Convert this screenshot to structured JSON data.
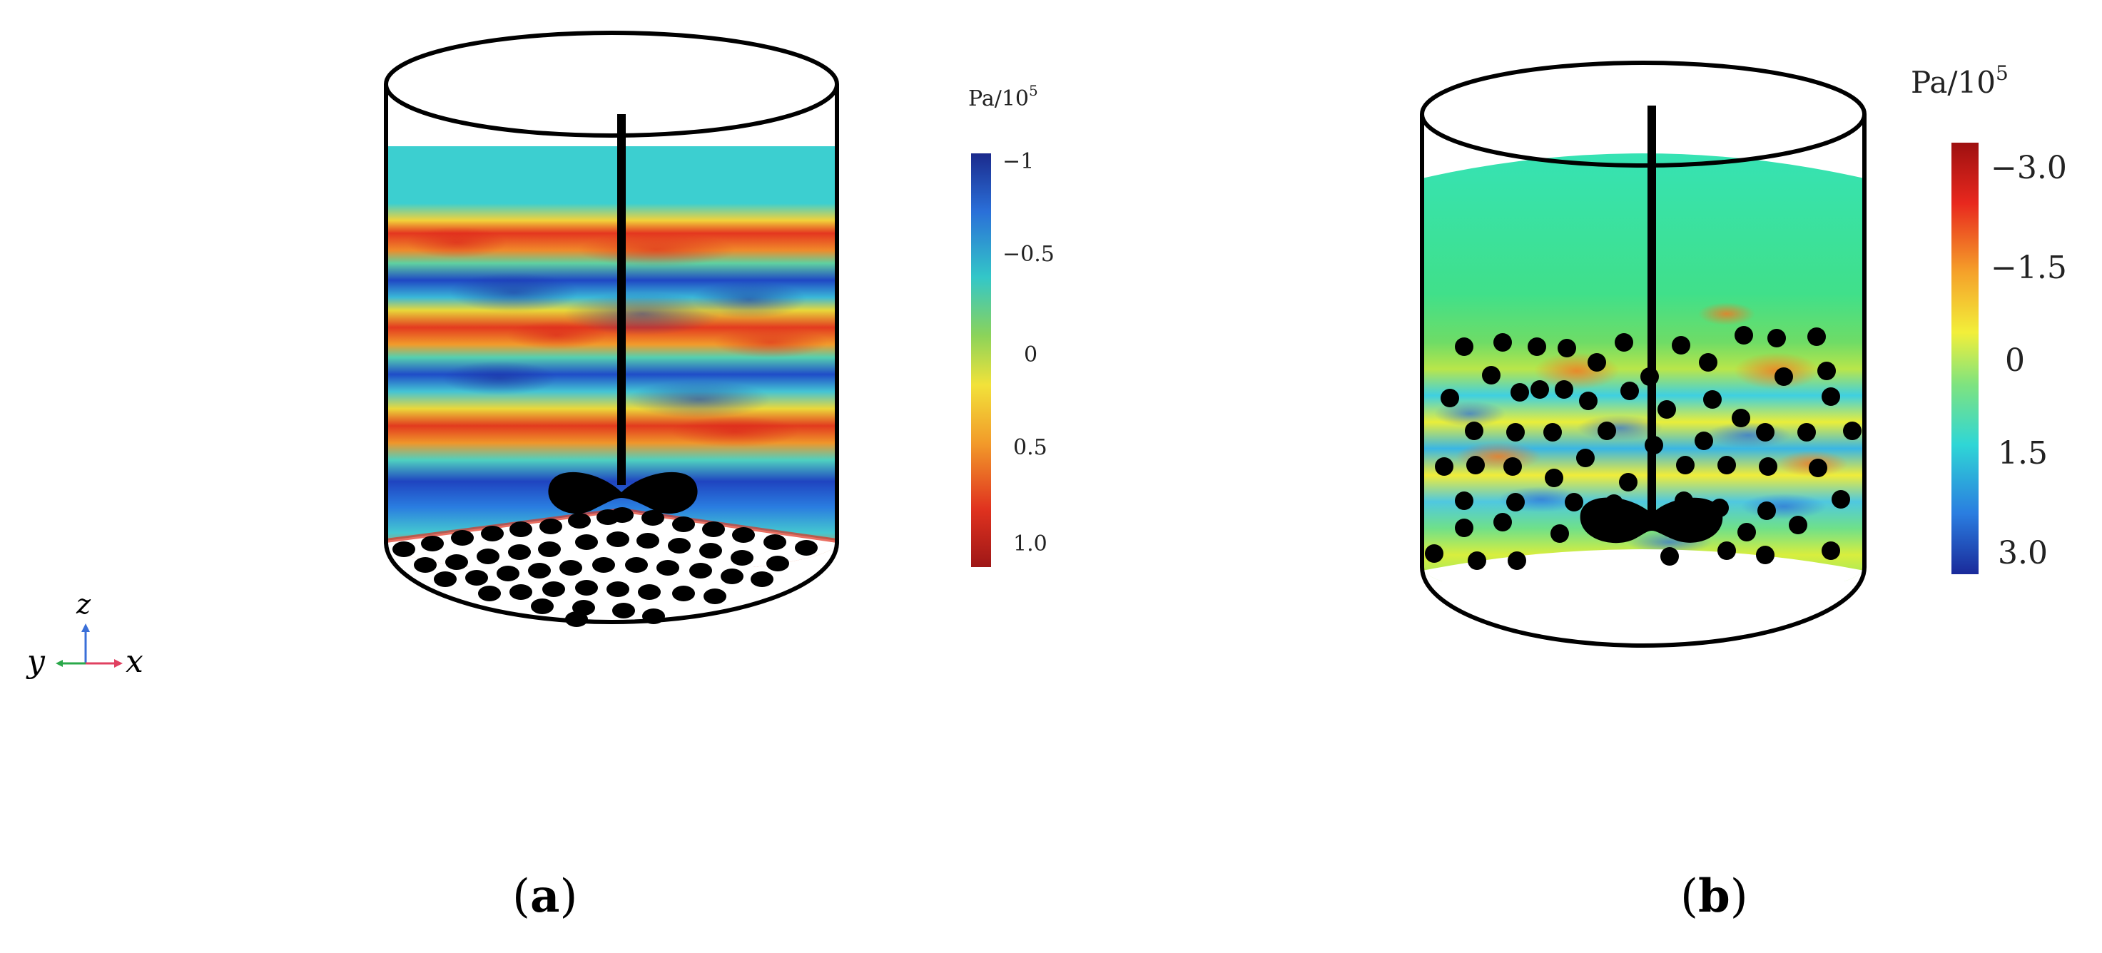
{
  "panels": [
    {
      "label_open": "(",
      "label_letter": "a",
      "label_close": ")",
      "colorbar": {
        "unit_main": "Pa/10",
        "unit_exp": "5",
        "ticks": [
          "−1",
          "−0.5",
          "0",
          "0.5",
          "1.0"
        ],
        "colors": [
          "#1b2a8c",
          "#2a6fd8",
          "#33c7c8",
          "#8bd35a",
          "#f2e23a",
          "#f29b2a",
          "#e0321f",
          "#9e1717"
        ]
      }
    },
    {
      "label_open": "(",
      "label_letter": "b",
      "label_close": ")",
      "colorbar": {
        "unit_main": "Pa/10",
        "unit_exp": "5",
        "ticks": [
          "−3.0",
          "−1.5",
          "0",
          "1.5",
          "3.0"
        ],
        "colors": [
          "#9e1010",
          "#e8281e",
          "#f5a12a",
          "#f2ef3a",
          "#7fe37f",
          "#2fd6d6",
          "#2a7de0",
          "#1a2a9a"
        ]
      }
    }
  ],
  "axes_triad": {
    "z": "z",
    "y": "y",
    "x": "x"
  }
}
